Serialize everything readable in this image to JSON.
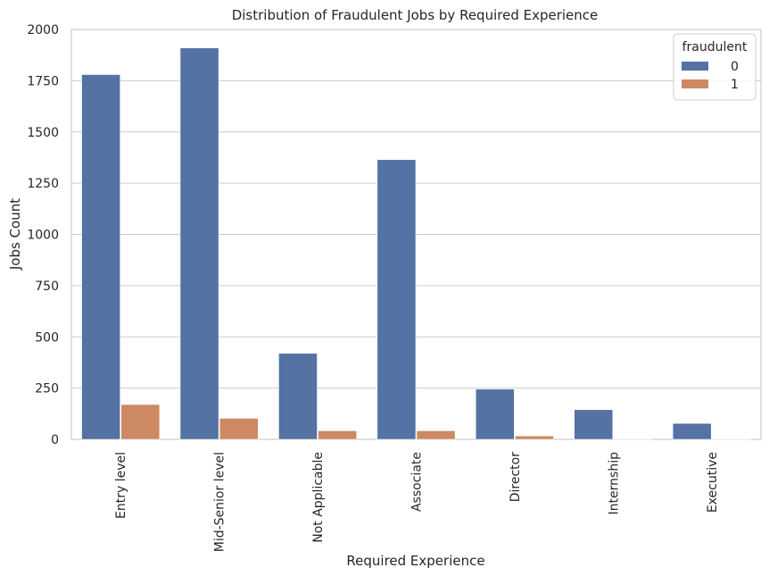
{
  "chart_data": {
    "type": "bar",
    "title": "Distribution of Fraudulent Jobs by Required Experience",
    "xlabel": "Required Experience",
    "ylabel": "Jobs Count",
    "ylim": [
      0,
      2000
    ],
    "yticks": [
      0,
      250,
      500,
      750,
      1000,
      1250,
      1500,
      1750,
      2000
    ],
    "grid": true,
    "legend": {
      "title": "fraudulent",
      "position": "top-right"
    },
    "categories": [
      "Entry level",
      "Mid-Senior level",
      "Not Applicable",
      "Associate",
      "Director",
      "Internship",
      "Executive"
    ],
    "series": [
      {
        "name": "0",
        "color": "#5572a4",
        "values": [
          1780,
          1910,
          420,
          1365,
          245,
          145,
          78
        ]
      },
      {
        "name": "1",
        "color": "#cc8963",
        "values": [
          170,
          103,
          42,
          42,
          17,
          3,
          1
        ]
      }
    ]
  }
}
